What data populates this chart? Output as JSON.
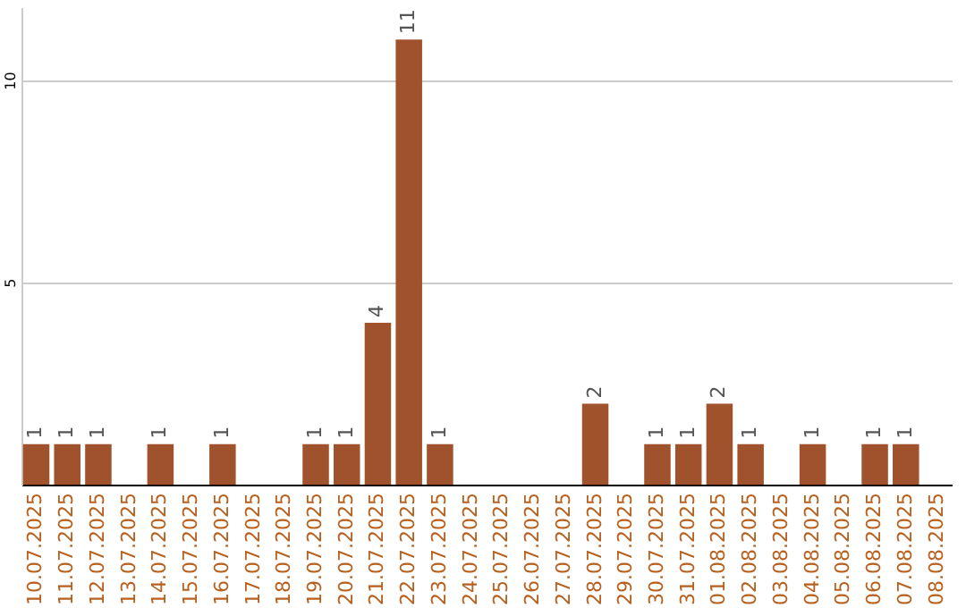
{
  "chart_data": {
    "type": "bar",
    "categories": [
      "10.07.2025",
      "11.07.2025",
      "12.07.2025",
      "13.07.2025",
      "14.07.2025",
      "15.07.2025",
      "16.07.2025",
      "17.07.2025",
      "18.07.2025",
      "19.07.2025",
      "20.07.2025",
      "21.07.2025",
      "22.07.2025",
      "23.07.2025",
      "24.07.2025",
      "25.07.2025",
      "26.07.2025",
      "27.07.2025",
      "28.07.2025",
      "29.07.2025",
      "30.07.2025",
      "31.07.2025",
      "01.08.2025",
      "02.08.2025",
      "03.08.2025",
      "04.08.2025",
      "05.08.2025",
      "06.08.2025",
      "07.08.2025",
      "08.08.2025"
    ],
    "values": [
      1,
      1,
      1,
      null,
      1,
      null,
      1,
      null,
      null,
      1,
      1,
      4,
      11,
      1,
      null,
      null,
      null,
      null,
      2,
      null,
      1,
      1,
      2,
      1,
      null,
      1,
      null,
      1,
      1,
      null
    ],
    "color": "#a0522d",
    "ylim": [
      0,
      11.8
    ],
    "yticks": [
      5,
      10
    ],
    "grid": "y",
    "data_labels": true
  }
}
